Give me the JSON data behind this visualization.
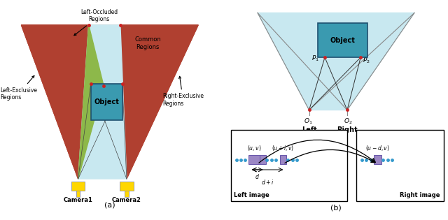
{
  "fig_width": 6.4,
  "fig_height": 3.15,
  "dpi": 100,
  "bg_color": "#ffffff",
  "left_panel": {
    "title": "(a)",
    "camera1_label": "Camera1",
    "camera2_label": "Camera2",
    "left_exclusive_label": "Left-Exclusive\nRegions",
    "right_exclusive_label": "Right-Exclusive\nRegions",
    "left_occluded_label": "Left-Occluded\nRegions",
    "common_label": "Common\nRegions",
    "object_label": "Object",
    "red_color": "#B04030",
    "light_blue": "#C8E8F0",
    "green_color": "#8DB84A",
    "teal_color": "#3A9AB0",
    "yellow_color": "#FFD700",
    "object_border": "#1E5070"
  },
  "right_panel": {
    "title": "(b)",
    "object_label": "Object",
    "left_label": "Left",
    "right_label": "Right",
    "left_image_label": "Left image",
    "right_image_label": "Right image",
    "O1_label": "$O_1$",
    "O2_label": "$O_2$",
    "P1_label": "$P_1$",
    "P2_label": "$P_2$",
    "uv_label": "$(u, v)$",
    "uiv_label": "$(u+i, v)$",
    "udv_label": "$(u-d, v)$",
    "d_label": "$d$",
    "di_label": "$d+i$",
    "light_blue": "#C8E8F0",
    "teal_color": "#3A9AB0",
    "purple_color": "#9B87C4",
    "dot_color": "#3399CC",
    "object_border": "#1E5070"
  }
}
